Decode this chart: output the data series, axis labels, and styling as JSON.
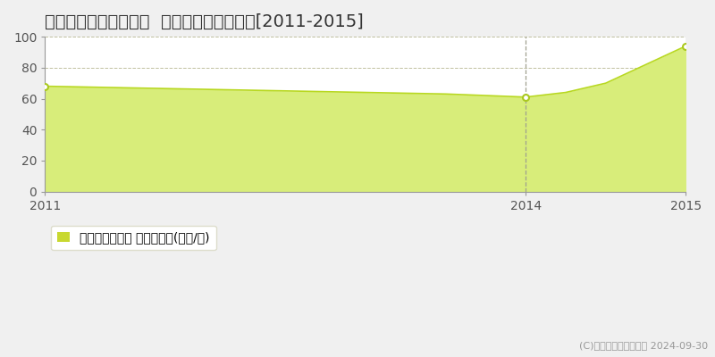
{
  "title": "名古屋市中川区露橋町  マンション価格推移[2011-2015]",
  "years": [
    2011,
    2011.25,
    2011.5,
    2011.75,
    2012,
    2012.25,
    2012.5,
    2012.75,
    2013,
    2013.25,
    2013.5,
    2013.75,
    2014,
    2014.25,
    2014.5,
    2014.75,
    2015
  ],
  "values": [
    68,
    67.5,
    67,
    66.5,
    66,
    65.5,
    65,
    64.5,
    64,
    63.5,
    63,
    62,
    61,
    64,
    70,
    82,
    94
  ],
  "data_points_x": [
    2011,
    2014,
    2015
  ],
  "data_points_y": [
    68,
    61,
    94
  ],
  "line_color": "#b8d820",
  "fill_color": "#d8ed7a",
  "fill_alpha": 1.0,
  "marker_color": "white",
  "marker_edge_color": "#aac820",
  "grid_color": "#c0c0a0",
  "background_color": "#f0f0f0",
  "plot_bg_color": "#ffffff",
  "ylim": [
    0,
    100
  ],
  "yticks": [
    0,
    20,
    40,
    60,
    80,
    100
  ],
  "xlim_left": 2011,
  "xlim_right": 2015,
  "xticks": [
    2011,
    2014,
    2015
  ],
  "vline_x": 2014,
  "vline_color": "#a0a090",
  "legend_label": "マンション価格 平均坪単価(万円/坪)",
  "legend_color": "#c8d830",
  "copyright_text": "(C)土地価格ドットコム 2024-09-30",
  "title_fontsize": 14,
  "tick_fontsize": 10,
  "legend_fontsize": 10,
  "copyright_fontsize": 8
}
